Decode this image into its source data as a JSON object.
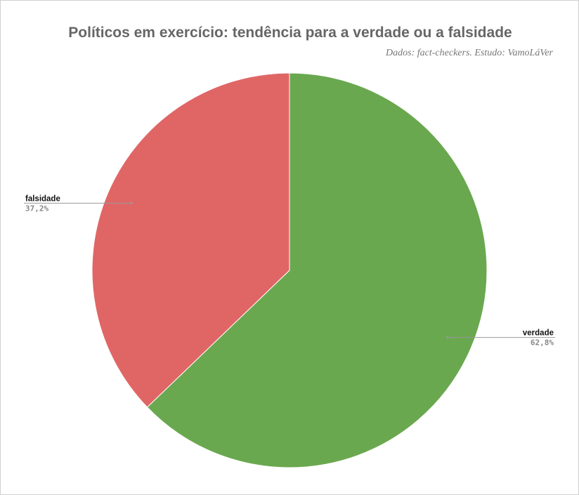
{
  "chart_data": {
    "type": "pie",
    "title": "Políticos em exercício: tendência para a verdade ou a falsidade",
    "subtitle": "Dados: fact-checkers. Estudo: VamoLáVer",
    "slices": [
      {
        "label": "verdade",
        "value": 62.8,
        "display": "62,8%",
        "color": "#6aa84f"
      },
      {
        "label": "falsidade",
        "value": 37.2,
        "display": "37,2%",
        "color": "#e06666"
      }
    ],
    "legend": "none",
    "label_style": "outside-leader"
  }
}
